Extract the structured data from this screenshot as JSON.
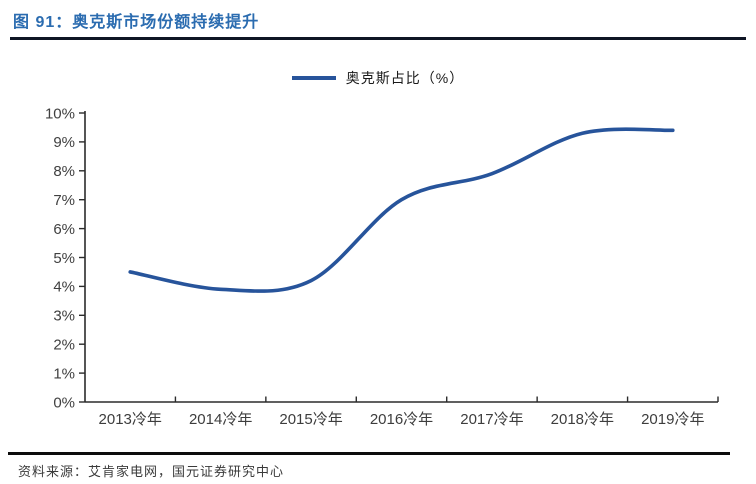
{
  "header": {
    "title": "图 91：奥克斯市场份额持续提升"
  },
  "legend": {
    "label": "奥克斯占比（%）"
  },
  "footer": {
    "source": "资料来源：艾肯家电网，国元证券研究中心"
  },
  "colors": {
    "title_blue": "#2b6cb0",
    "series_line": "#27549b",
    "header_rule": "#0e1524",
    "footer_rule": "#0c0c0c",
    "axis": "#2b2b2b",
    "tick_label": "#404040"
  },
  "chart_data": {
    "type": "line",
    "title": "图 91：奥克斯市场份额持续提升",
    "categories": [
      "2013冷年",
      "2014冷年",
      "2015冷年",
      "2016冷年",
      "2017冷年",
      "2018冷年",
      "2019冷年"
    ],
    "series": [
      {
        "name": "奥克斯占比（%）",
        "values": [
          4.5,
          3.9,
          4.2,
          7.0,
          7.9,
          9.3,
          9.4
        ]
      }
    ],
    "xlabel": "",
    "ylabel": "",
    "ylim": [
      0,
      10
    ],
    "ytick_step": 1,
    "yticklabels": [
      "0%",
      "1%",
      "2%",
      "3%",
      "4%",
      "5%",
      "6%",
      "7%",
      "8%",
      "9%",
      "10%"
    ],
    "grid": false,
    "smooth": true,
    "legend_position": "top-center"
  }
}
